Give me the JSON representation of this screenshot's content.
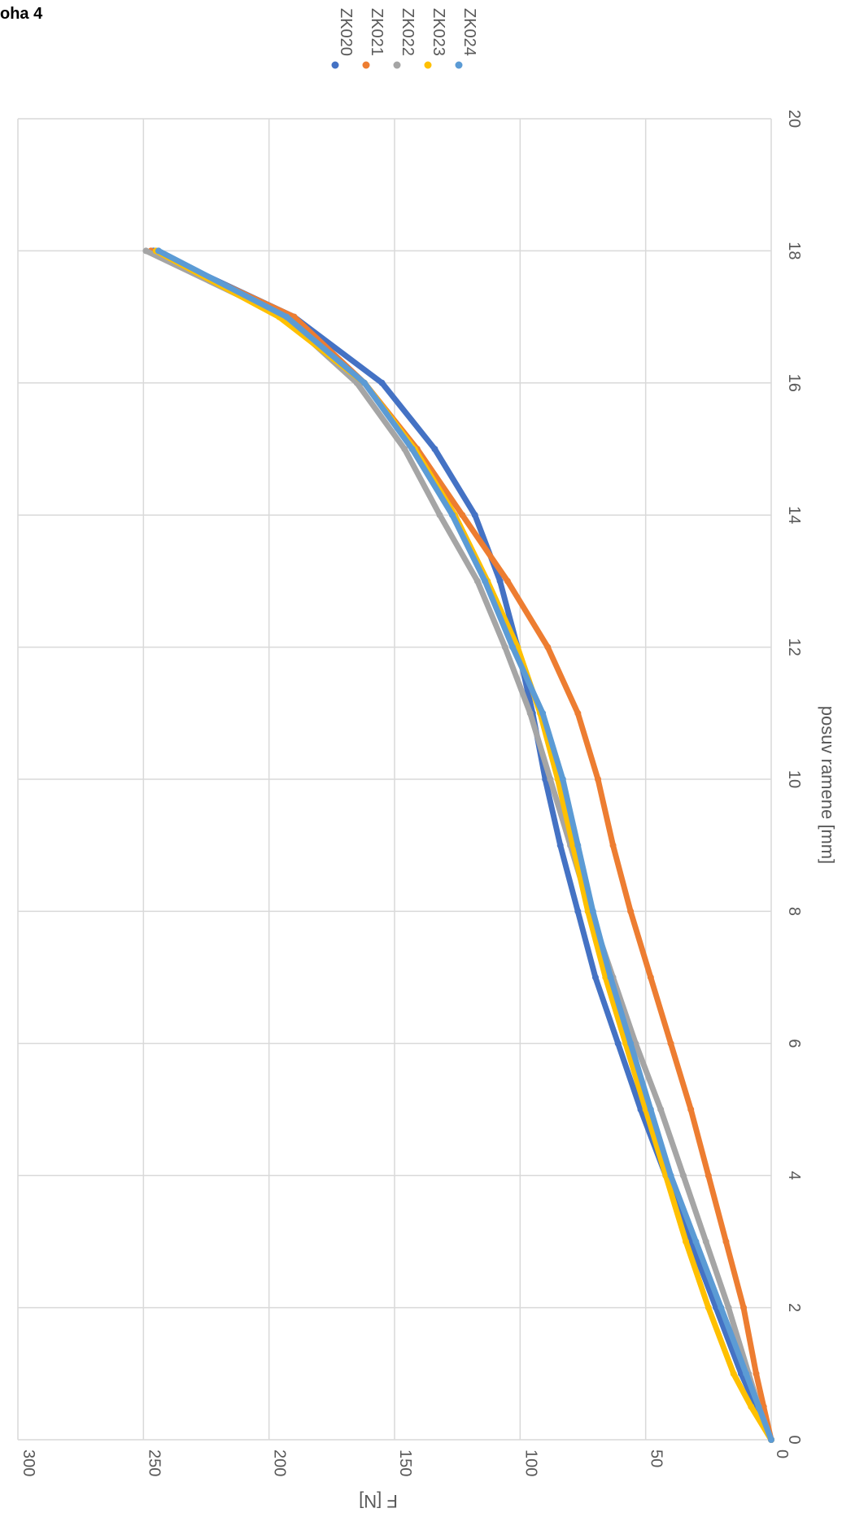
{
  "header": {
    "title": "oha 4"
  },
  "chart_data": {
    "type": "scatter",
    "orientation": "rotated-90-clockwise",
    "xlabel": "posuv ramene [mm]",
    "ylabel": "F [N]",
    "xlim": [
      0,
      20
    ],
    "ylim": [
      0,
      300
    ],
    "x_ticks": [
      "0",
      "2",
      "4",
      "6",
      "8",
      "10",
      "12",
      "14",
      "16",
      "18",
      "20"
    ],
    "y_ticks": [
      "0",
      "50",
      "100",
      "150",
      "200",
      "250",
      "300"
    ],
    "grid": true,
    "legend_position": "top",
    "series": [
      {
        "name": "ZK020",
        "color": "#4472C4",
        "points": [
          [
            0,
            0
          ],
          [
            0.5,
            6
          ],
          [
            1,
            12
          ],
          [
            2,
            22
          ],
          [
            3,
            32
          ],
          [
            4,
            42
          ],
          [
            5,
            52
          ],
          [
            6,
            61
          ],
          [
            7,
            70
          ],
          [
            8,
            77
          ],
          [
            9,
            84
          ],
          [
            10,
            90
          ],
          [
            11,
            95
          ],
          [
            12,
            101
          ],
          [
            13,
            108
          ],
          [
            14,
            118
          ],
          [
            15,
            134
          ],
          [
            16,
            155
          ],
          [
            17,
            190
          ],
          [
            18,
            246
          ]
        ]
      },
      {
        "name": "ZK021",
        "color": "#ED7D31",
        "points": [
          [
            0,
            0
          ],
          [
            0.5,
            3
          ],
          [
            1,
            6
          ],
          [
            2,
            11
          ],
          [
            3,
            18
          ],
          [
            4,
            25
          ],
          [
            5,
            32
          ],
          [
            6,
            40
          ],
          [
            7,
            48
          ],
          [
            8,
            56
          ],
          [
            9,
            63
          ],
          [
            10,
            69
          ],
          [
            11,
            77
          ],
          [
            12,
            89
          ],
          [
            13,
            105
          ],
          [
            14,
            123
          ],
          [
            15,
            141
          ],
          [
            16,
            162
          ],
          [
            17,
            190
          ],
          [
            18,
            247
          ]
        ]
      },
      {
        "name": "ZK022",
        "color": "#A5A5A5",
        "points": [
          [
            0,
            0
          ],
          [
            0.5,
            5
          ],
          [
            1,
            9
          ],
          [
            2,
            17
          ],
          [
            3,
            26
          ],
          [
            4,
            35
          ],
          [
            5,
            44
          ],
          [
            6,
            54
          ],
          [
            7,
            63
          ],
          [
            8,
            72
          ],
          [
            9,
            80
          ],
          [
            10,
            88
          ],
          [
            11,
            96
          ],
          [
            12,
            106
          ],
          [
            13,
            117
          ],
          [
            14,
            132
          ],
          [
            15,
            146
          ],
          [
            16,
            165
          ],
          [
            17,
            194
          ],
          [
            18,
            249
          ]
        ]
      },
      {
        "name": "ZK023",
        "color": "#FFC000",
        "points": [
          [
            0,
            0
          ],
          [
            0.5,
            8
          ],
          [
            1,
            15
          ],
          [
            2,
            25
          ],
          [
            3,
            34
          ],
          [
            4,
            42
          ],
          [
            5,
            50
          ],
          [
            6,
            58
          ],
          [
            7,
            66
          ],
          [
            8,
            73
          ],
          [
            9,
            79
          ],
          [
            10,
            85
          ],
          [
            11,
            92
          ],
          [
            12,
            101
          ],
          [
            13,
            113
          ],
          [
            14,
            126
          ],
          [
            15,
            142
          ],
          [
            16,
            162
          ],
          [
            17,
            196
          ],
          [
            18,
            245
          ]
        ]
      },
      {
        "name": "ZK024",
        "color": "#5B9BD5",
        "points": [
          [
            0,
            0
          ],
          [
            0.5,
            5
          ],
          [
            1,
            10
          ],
          [
            2,
            20
          ],
          [
            3,
            30
          ],
          [
            4,
            40
          ],
          [
            5,
            48
          ],
          [
            6,
            56
          ],
          [
            7,
            64
          ],
          [
            8,
            71
          ],
          [
            9,
            77
          ],
          [
            10,
            83
          ],
          [
            11,
            91
          ],
          [
            12,
            103
          ],
          [
            13,
            114
          ],
          [
            14,
            127
          ],
          [
            15,
            143
          ],
          [
            16,
            162
          ],
          [
            17,
            193
          ],
          [
            18,
            244
          ]
        ]
      }
    ]
  }
}
